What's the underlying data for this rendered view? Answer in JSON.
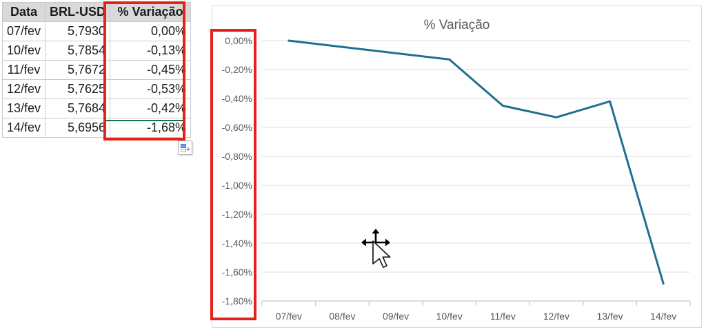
{
  "table": {
    "headers": [
      "Data",
      "BRL-USD",
      "% Variação"
    ],
    "rows": [
      {
        "date": "07/fev",
        "rate": "5,7930",
        "variation": "0,00%"
      },
      {
        "date": "10/fev",
        "rate": "5,7854",
        "variation": "-0,13%"
      },
      {
        "date": "11/fev",
        "rate": "5,7672",
        "variation": "-0,45%"
      },
      {
        "date": "12/fev",
        "rate": "5,7625",
        "variation": "-0,53%"
      },
      {
        "date": "13/fev",
        "rate": "5,7684",
        "variation": "-0,42%"
      },
      {
        "date": "14/fev",
        "rate": "5,6956",
        "variation": "-1,68%"
      }
    ],
    "active_cell_value": "-1,68%"
  },
  "chart_data": {
    "type": "line",
    "title": "% Variação",
    "categories": [
      "07/fev",
      "08/fev",
      "09/fev",
      "10/fev",
      "11/fev",
      "12/fev",
      "13/fev",
      "14/fev"
    ],
    "series": [
      {
        "name": "% Variação",
        "color": "#1f6f91",
        "points": [
          {
            "category": "07/fev",
            "value": 0.0
          },
          {
            "category": "10/fev",
            "value": -0.13
          },
          {
            "category": "11/fev",
            "value": -0.45
          },
          {
            "category": "12/fev",
            "value": -0.53
          },
          {
            "category": "13/fev",
            "value": -0.42
          },
          {
            "category": "14/fev",
            "value": -1.68
          }
        ]
      }
    ],
    "ylim": [
      -1.8,
      0
    ],
    "ytick_step": 0.2,
    "ytick_labels": [
      "0,00%",
      "-0,20%",
      "-0,40%",
      "-0,60%",
      "-0,80%",
      "-1,00%",
      "-1,20%",
      "-1,40%",
      "-1,60%",
      "-1,80%"
    ],
    "grid": true,
    "legend": "none"
  },
  "annotations": {
    "highlight_color": "#e32219",
    "selection_color": "#177245"
  },
  "icons": {
    "move_cursor": "four-arrow-move-with-pointer",
    "autofill_options": "fill-options-grid-plus"
  }
}
